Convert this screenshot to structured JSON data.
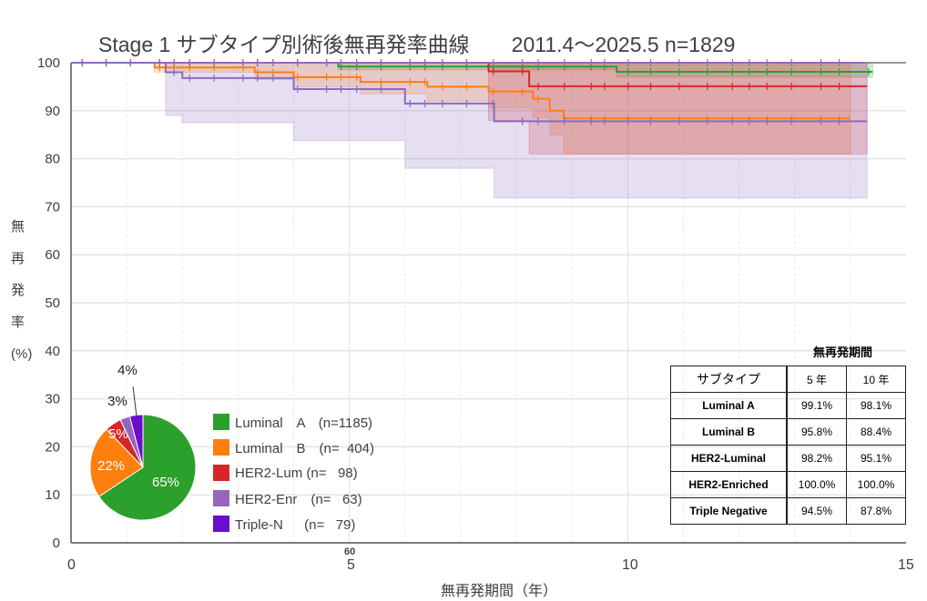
{
  "title": "Stage 1 サブタイプ別術後無再発率曲線　　2011.4〜2025.5 n=1829",
  "ylabel_chars": [
    "無",
    "再",
    "発",
    "率",
    "(%)"
  ],
  "chart_data": [
    {
      "type": "line",
      "title": "Stage 1 サブタイプ別術後無再発率曲線 2011.4〜2025.5 n=1829",
      "xlabel": "無再発期間（年）",
      "ylabel": "無再発率(%)",
      "xlim": [
        0,
        15
      ],
      "ylim": [
        0,
        100
      ],
      "xticks": [
        "0",
        "5",
        "10",
        "15"
      ],
      "extra_xtick_label": "60",
      "yticks": [
        "0",
        "10",
        "20",
        "30",
        "40",
        "50",
        "60",
        "70",
        "80",
        "90",
        "100"
      ],
      "grid": true,
      "series": [
        {
          "name": "Luminal A",
          "color": "#2ca02c",
          "x": [
            0,
            4.8,
            9.8,
            14.4
          ],
          "y": [
            100,
            99.2,
            98.1,
            98.1
          ],
          "ci_lower": [
            100,
            98.5,
            97,
            97
          ]
        },
        {
          "name": "Luminal B",
          "color": "#ff7f0e",
          "x": [
            0,
            1.5,
            3.3,
            4.0,
            5.2,
            6.4,
            7.5,
            8.3,
            8.6,
            8.85,
            14.0
          ],
          "y": [
            100,
            99,
            98,
            97,
            96,
            95,
            94,
            92.5,
            90,
            88.4,
            88.4
          ],
          "ci_lower": [
            100,
            98,
            96.5,
            95,
            93.5,
            92,
            90.5,
            88.5,
            85,
            81,
            81
          ]
        },
        {
          "name": "HER2-Luminal",
          "color": "#d62728",
          "x": [
            0,
            7.5,
            8.23,
            14.3
          ],
          "y": [
            100,
            98.2,
            95.1,
            95.1
          ],
          "ci_lower": [
            100,
            88,
            81,
            81
          ]
        },
        {
          "name": "HER2-Enriched",
          "color": "#9467bd",
          "x": [
            0,
            14.2
          ],
          "y": [
            100,
            100
          ],
          "ci_lower": [
            100,
            100
          ]
        },
        {
          "name": "Triple Negative",
          "color": "#8c6bc0",
          "x": [
            0,
            1.7,
            2.0,
            4.0,
            6.0,
            7.6,
            14.3
          ],
          "y": [
            100,
            98,
            96.8,
            94.5,
            91.5,
            87.8,
            87.8
          ],
          "ci_lower": [
            100,
            89,
            87.5,
            83.8,
            78,
            71.8,
            71.8
          ]
        }
      ]
    },
    {
      "type": "pie",
      "slices": [
        {
          "label": "Luminal A",
          "value": 65,
          "text": "65%",
          "color": "#2ca02c"
        },
        {
          "label": "Luminal B",
          "value": 22,
          "text": "22%",
          "color": "#ff7f0e"
        },
        {
          "label": "HER2-Lum",
          "value": 5,
          "text": "5%",
          "color": "#d62728"
        },
        {
          "label": "HER2-Enr",
          "value": 3,
          "text": "3%",
          "color": "#9467bd"
        },
        {
          "label": "Triple-N",
          "value": 4,
          "text": "4%",
          "color": "#6a0dcd"
        }
      ]
    }
  ],
  "legend": [
    {
      "label": "Luminal　A　(n=1185)",
      "color": "#2ca02c"
    },
    {
      "label": "Luminal　B　(n=  404)",
      "color": "#ff7f0e"
    },
    {
      "label": "HER2-Lum (n=   98)",
      "color": "#d62728"
    },
    {
      "label": "HER2-Enr　(n=   63)",
      "color": "#9467bd"
    },
    {
      "label": "Triple-N　  (n=   79)",
      "color": "#6a0dcd"
    }
  ],
  "table": {
    "caption": "無再発期間",
    "headers": [
      "サブタイプ",
      "5 年",
      "10 年"
    ],
    "rows": [
      [
        "Luminal A",
        "99.1%",
        "98.1%"
      ],
      [
        "Luminal B",
        "95.8%",
        "88.4%"
      ],
      [
        "HER2-Luminal",
        "98.2%",
        "95.1%"
      ],
      [
        "HER2-Enriched",
        "100.0%",
        "100.0%"
      ],
      [
        "Triple Negative",
        "94.5%",
        "87.8%"
      ]
    ]
  }
}
